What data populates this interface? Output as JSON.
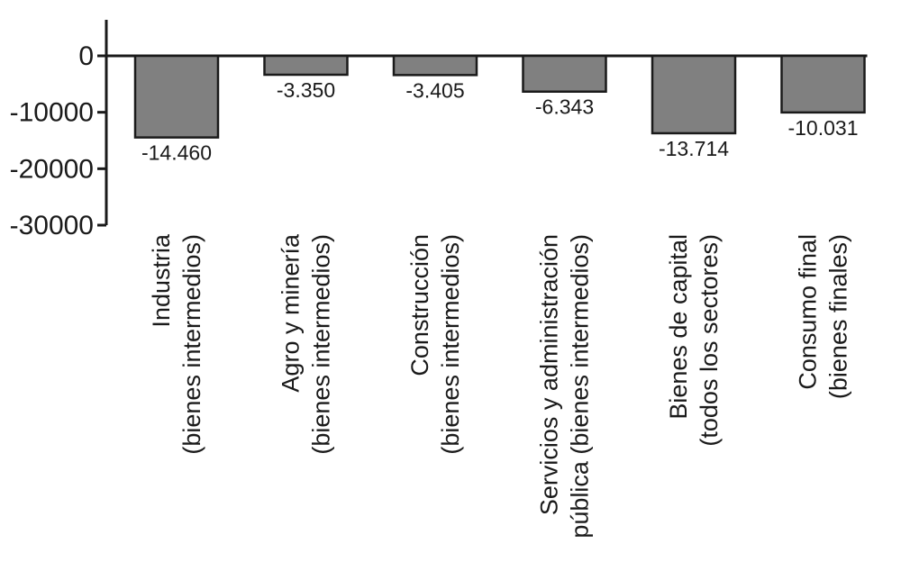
{
  "chart_data": {
    "type": "bar",
    "categories": [
      [
        "Industria",
        "(bienes intermedios)"
      ],
      [
        "Agro y minería",
        "(bienes intermedios)"
      ],
      [
        "Construcción",
        "(bienes intermedios)"
      ],
      [
        "Servicios y administración",
        "pública (bienes intermedios)"
      ],
      [
        "Bienes de capital",
        "(todos los sectores)"
      ],
      [
        "Consumo final",
        "(bienes finales)"
      ]
    ],
    "values": [
      -14460,
      -3350,
      -3405,
      -6343,
      -13714,
      -10031
    ],
    "data_labels": [
      "-14.460",
      "-3.350",
      "-3.405",
      "-6.343",
      "-13.714",
      "-10.031"
    ],
    "ylim": [
      -30000,
      0
    ],
    "yticks": [
      0,
      -10000,
      -20000,
      -30000
    ],
    "ytick_labels": [
      "0",
      "-10000",
      "-20000",
      "-30000"
    ],
    "title": "",
    "xlabel": "",
    "ylabel": "",
    "grid": false,
    "colors": {
      "bar": "#808080",
      "bar_stroke": "#1a1a1a",
      "axis": "#1a1a1a"
    }
  }
}
